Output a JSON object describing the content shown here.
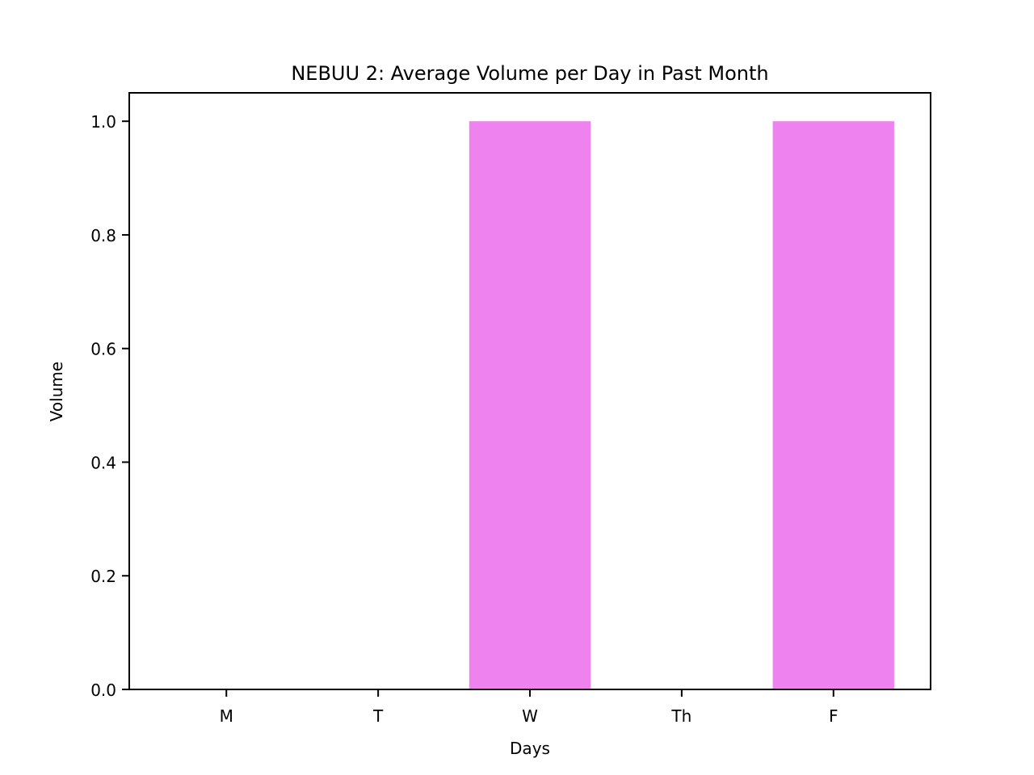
{
  "chart_data": {
    "type": "bar",
    "title": "NEBUU 2: Average Volume per Day in Past Month",
    "xlabel": "Days",
    "ylabel": "Volume",
    "categories": [
      "M",
      "T",
      "W",
      "Th",
      "F"
    ],
    "values": [
      0,
      0,
      1.0,
      0,
      1.0
    ],
    "ylim": [
      0,
      1.05
    ],
    "yticks": [
      "0.0",
      "0.2",
      "0.4",
      "0.6",
      "0.8",
      "1.0"
    ],
    "grid": false,
    "bar_color": "#ee82ee"
  }
}
